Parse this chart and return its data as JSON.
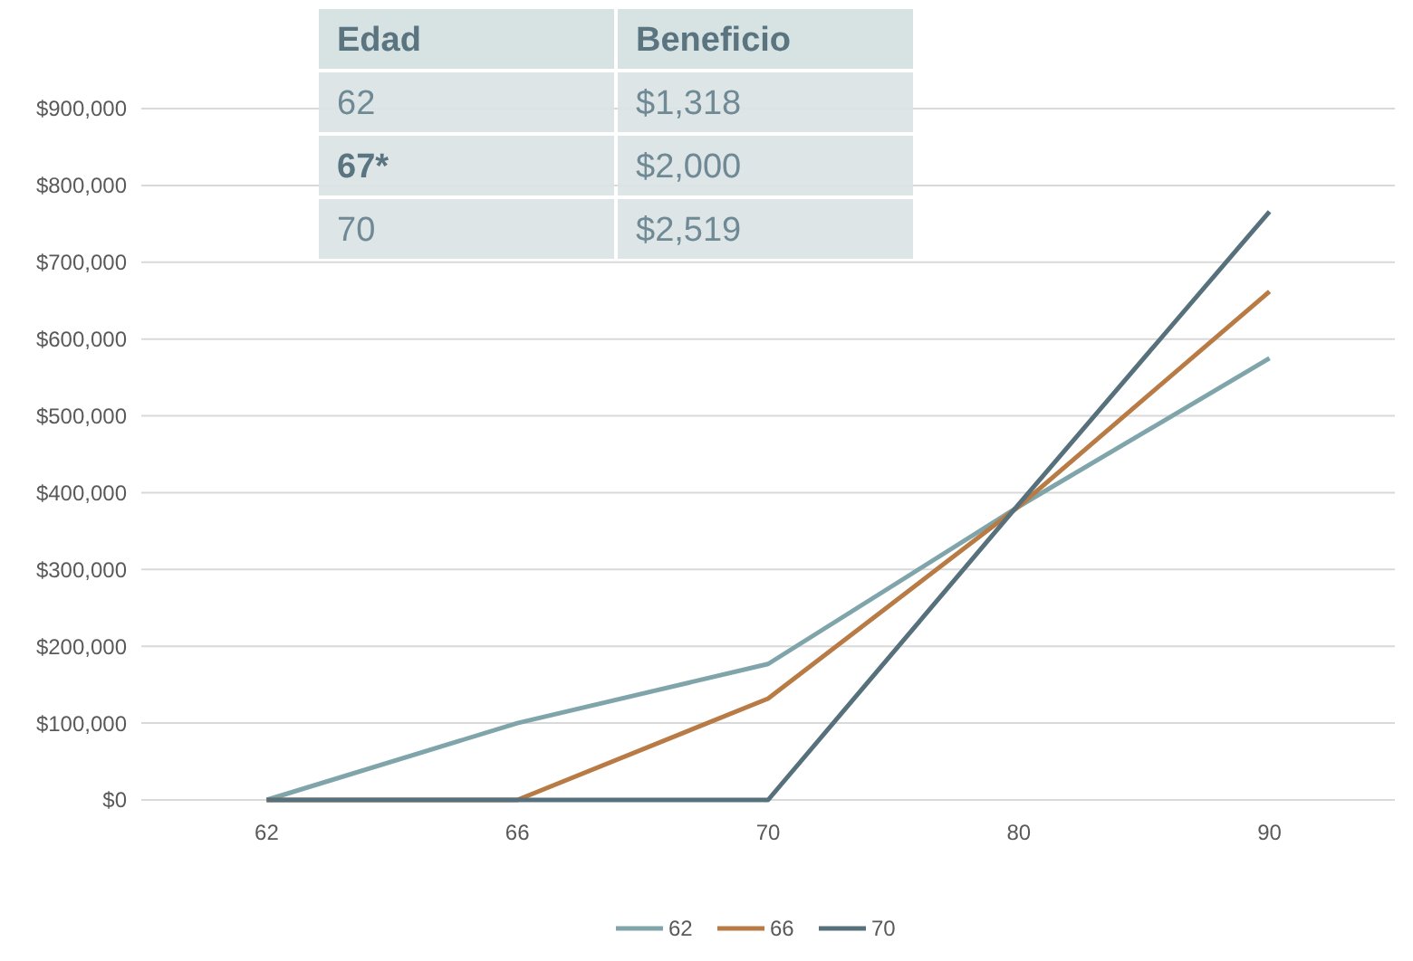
{
  "chart_data": {
    "type": "line",
    "categories": [
      "62",
      "66",
      "70",
      "80",
      "90"
    ],
    "series": [
      {
        "name": "62",
        "color": "#7fa5ab",
        "values": [
          0,
          100000,
          177000,
          382000,
          575000
        ]
      },
      {
        "name": "66",
        "color": "#b87b45",
        "values": [
          0,
          0,
          132000,
          382000,
          662000
        ]
      },
      {
        "name": "70",
        "color": "#56707c",
        "values": [
          0,
          0,
          0,
          385000,
          766000
        ]
      }
    ],
    "ylim": [
      0,
      900000
    ],
    "yticks": [
      {
        "value": 0,
        "label": "$0"
      },
      {
        "value": 100000,
        "label": "$100,000"
      },
      {
        "value": 200000,
        "label": "$200,000"
      },
      {
        "value": 300000,
        "label": "$300,000"
      },
      {
        "value": 400000,
        "label": "$400,000"
      },
      {
        "value": 500000,
        "label": "$500,000"
      },
      {
        "value": 600000,
        "label": "$600,000"
      },
      {
        "value": 700000,
        "label": "$700,000"
      },
      {
        "value": 800000,
        "label": "$800,000"
      },
      {
        "value": 900000,
        "label": "$900,000"
      }
    ],
    "grid": "y",
    "legend": "bottom",
    "marker": "none",
    "line_style": "solid",
    "annotations": [
      "Edad",
      "Beneficio",
      "62",
      "$1,318",
      "67*",
      "$2,000",
      "70",
      "$2,519"
    ]
  }
}
